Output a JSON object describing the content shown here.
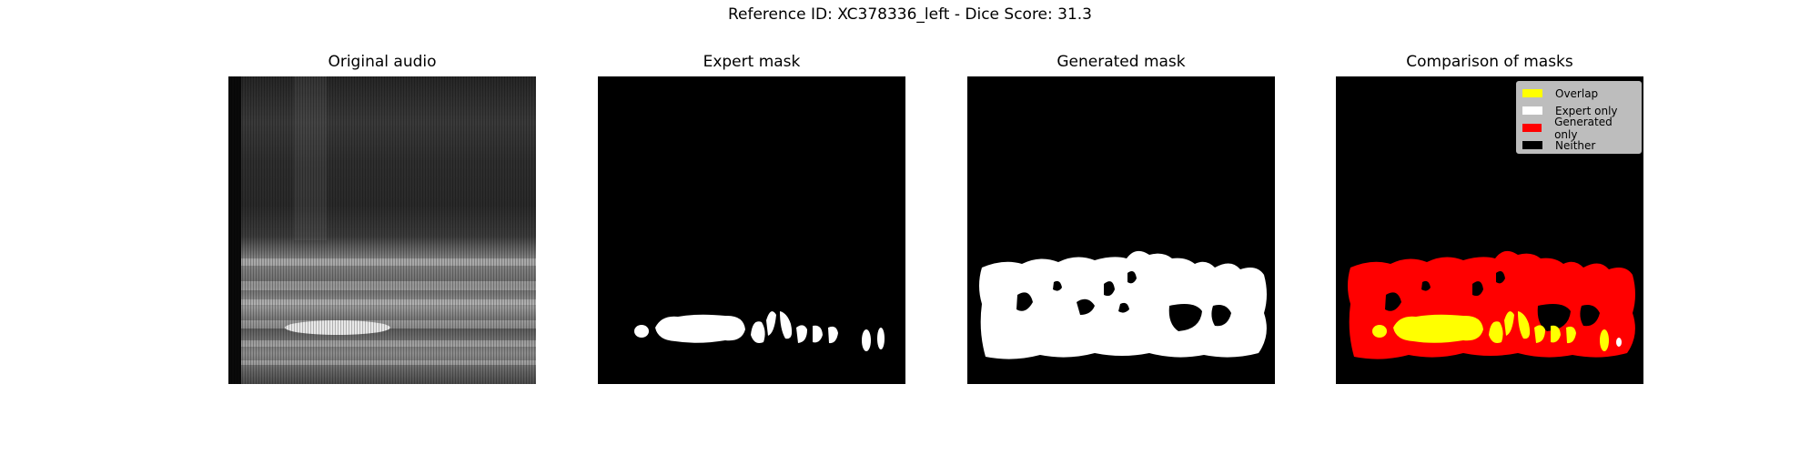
{
  "figure": {
    "suptitle": "Reference ID: XC378336_left - Dice Score: 31.3"
  },
  "panels": [
    {
      "title": "Original audio"
    },
    {
      "title": "Expert mask"
    },
    {
      "title": "Generated mask"
    },
    {
      "title": "Comparison of masks"
    }
  ],
  "legend": {
    "placement": "top-right",
    "items": [
      {
        "label": "Overlap",
        "color": "#ffff00"
      },
      {
        "label": "Expert only",
        "color": "#ffffff"
      },
      {
        "label": "Generated only",
        "color": "#ff0000"
      },
      {
        "label": "Neither",
        "color": "#000000"
      }
    ]
  },
  "colors": {
    "background": "#ffffff",
    "mask_background": "#000000",
    "mask_foreground": "#ffffff"
  }
}
